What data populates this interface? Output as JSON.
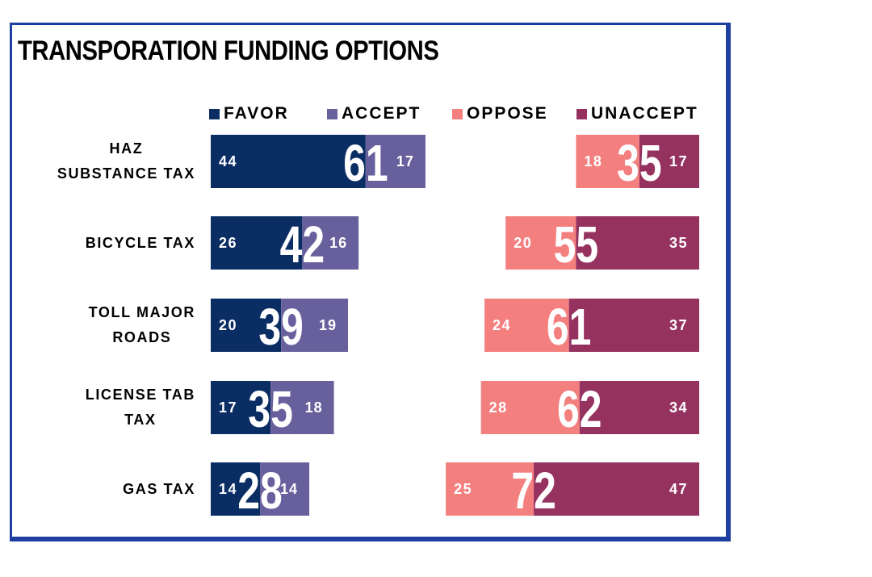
{
  "title": "TRANSPORATION FUNDING OPTIONS",
  "chart_data": {
    "type": "bar",
    "orientation": "horizontal-diverging-stacked",
    "title": "TRANSPORATION FUNDING OPTIONS",
    "legend_position": "top",
    "grid": false,
    "series": [
      {
        "name": "FAVOR",
        "color": "#0a2d64"
      },
      {
        "name": "ACCEPT",
        "color": "#68609c"
      },
      {
        "name": "OPPOSE",
        "color": "#f47f7f"
      },
      {
        "name": "UNACCEPT",
        "color": "#95325f"
      }
    ],
    "rows": [
      {
        "category": [
          "HAZ",
          "SUBSTANCE TAX"
        ],
        "favor": 44,
        "accept": 17,
        "oppose": 18,
        "unaccept": 17,
        "support_total": 61,
        "against_total": 35
      },
      {
        "category": [
          "BICYCLE TAX"
        ],
        "favor": 26,
        "accept": 16,
        "oppose": 20,
        "unaccept": 35,
        "support_total": 42,
        "against_total": 55
      },
      {
        "category": [
          "TOLL MAJOR",
          "ROADS"
        ],
        "favor": 20,
        "accept": 19,
        "oppose": 24,
        "unaccept": 37,
        "support_total": 39,
        "against_total": 61
      },
      {
        "category": [
          "LICENSE TAB",
          "TAX"
        ],
        "favor": 17,
        "accept": 18,
        "oppose": 28,
        "unaccept": 34,
        "support_total": 35,
        "against_total": 62
      },
      {
        "category": [
          "GAS TAX"
        ],
        "favor": 14,
        "accept": 14,
        "oppose": 25,
        "unaccept": 47,
        "support_total": 28,
        "against_total": 72
      }
    ]
  }
}
